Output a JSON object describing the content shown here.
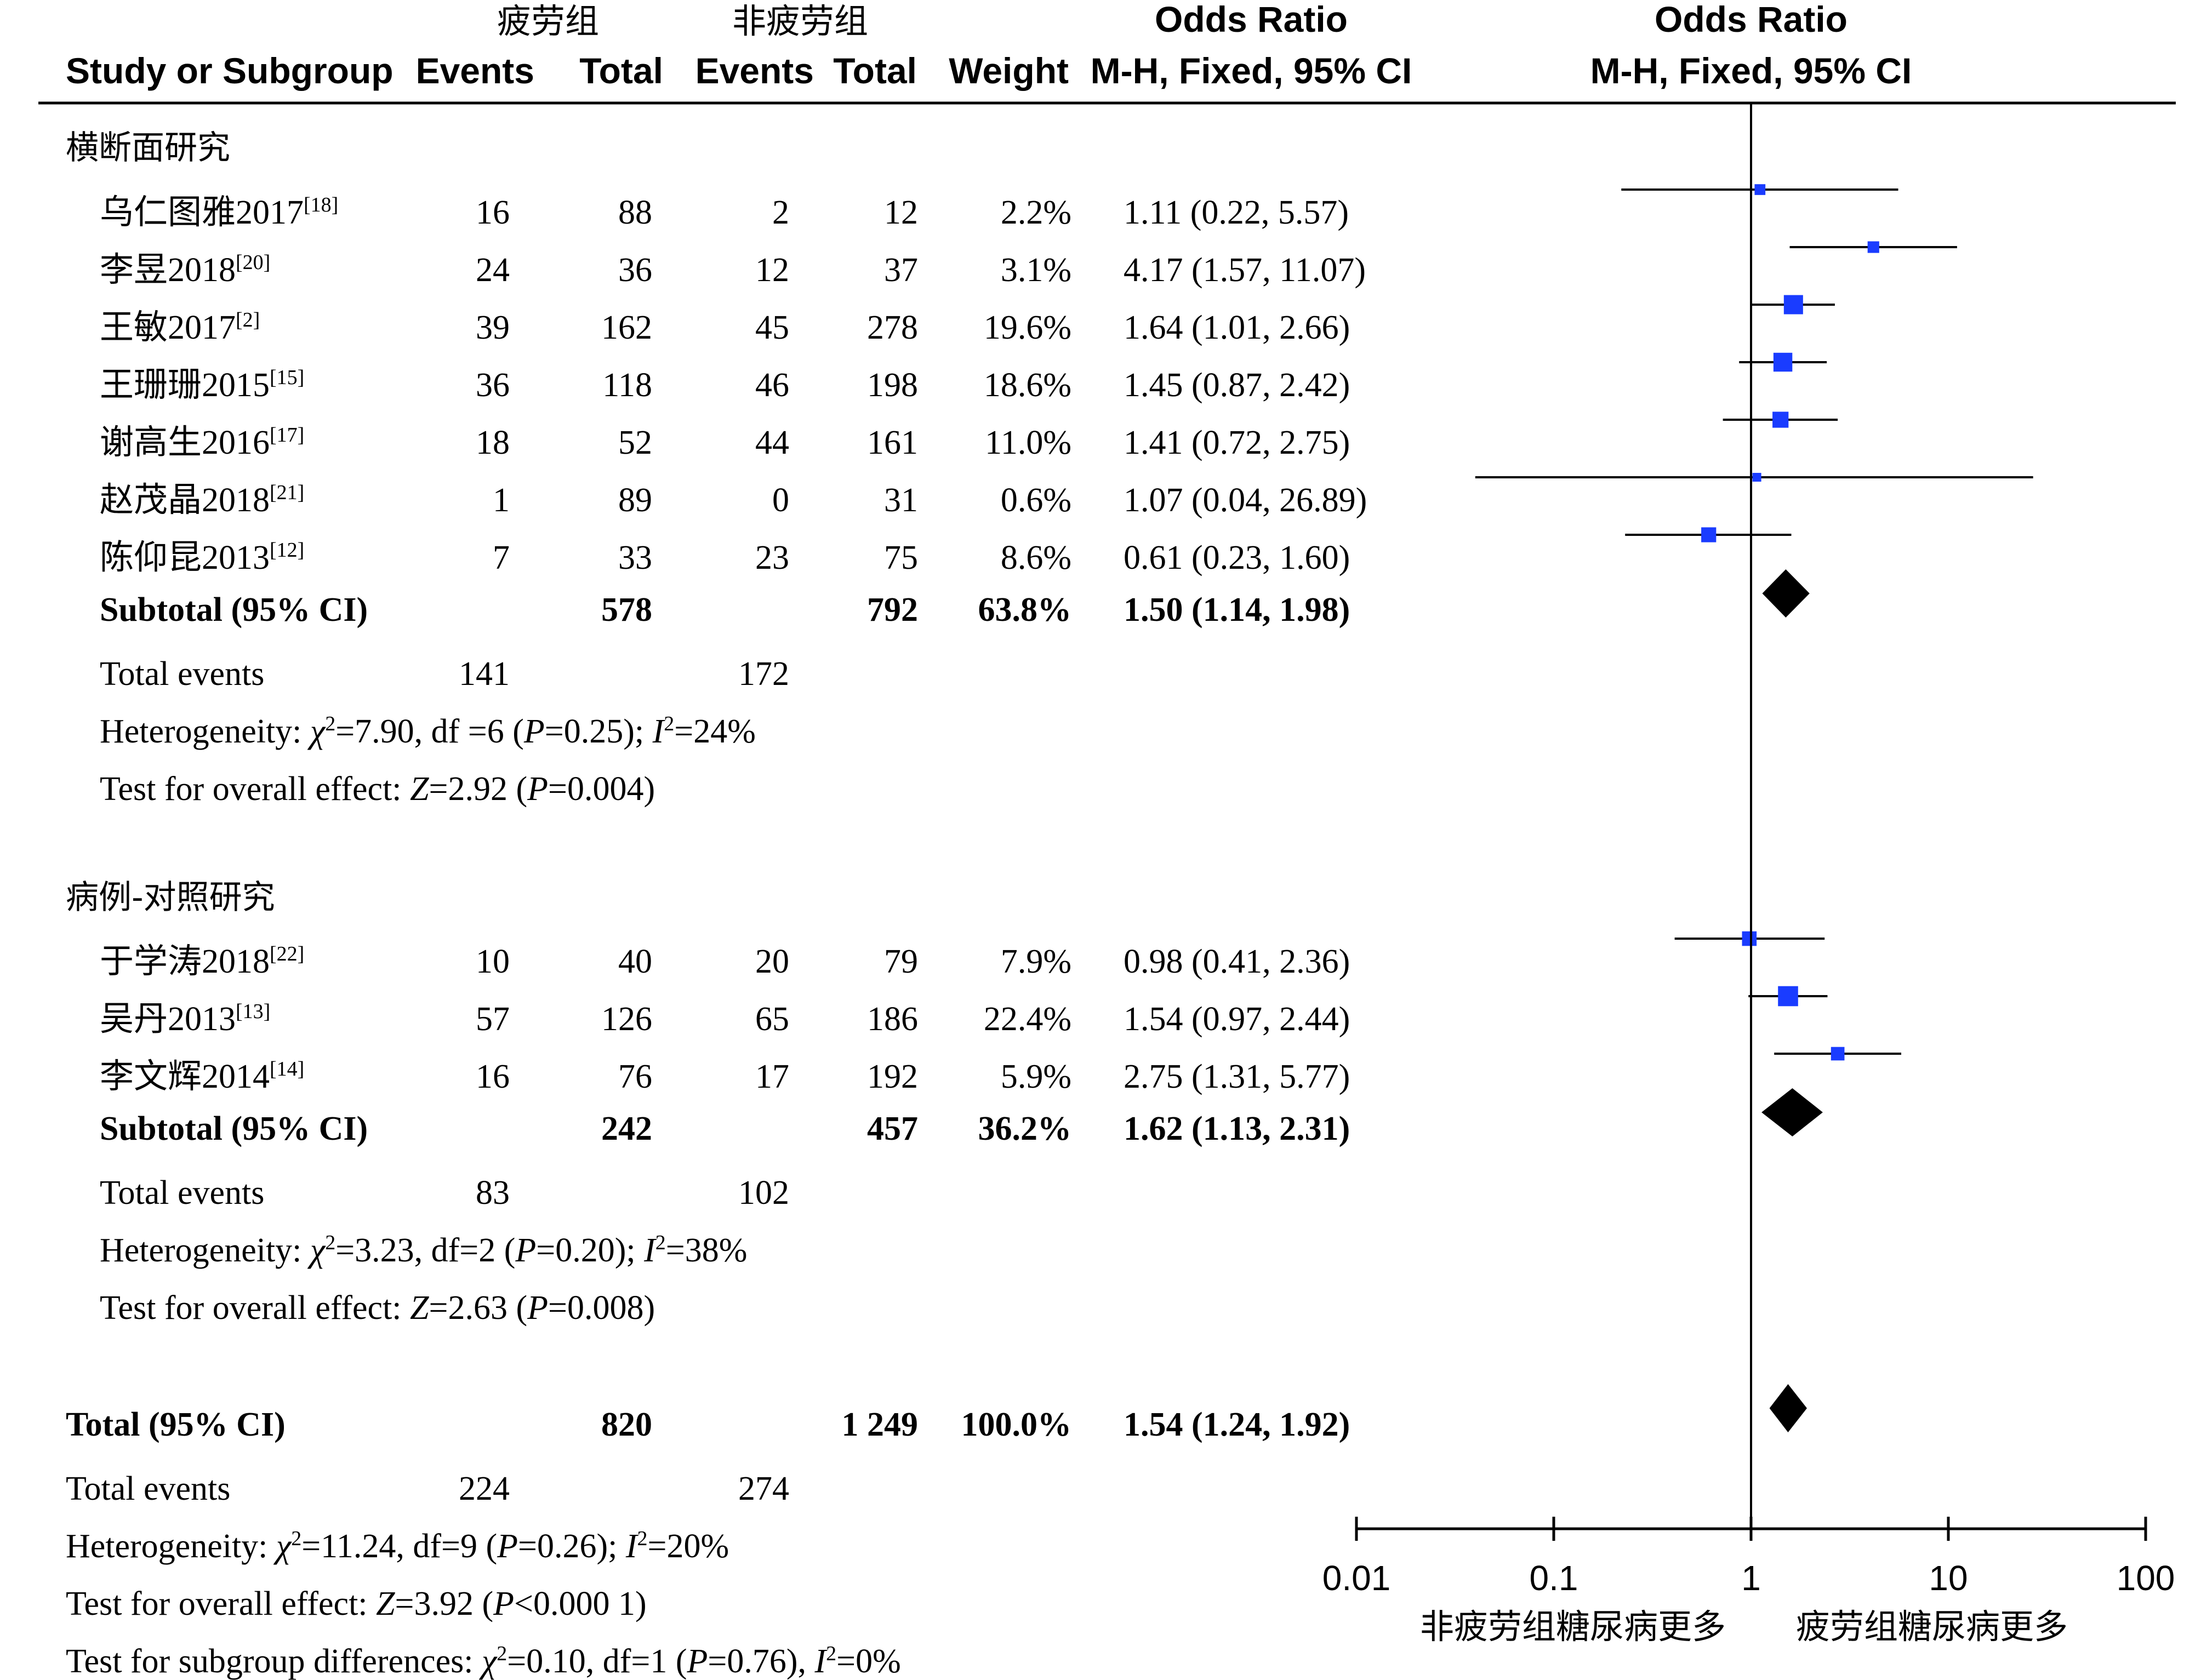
{
  "header": {
    "group1": "疲劳组",
    "group2": "非疲劳组",
    "col_study": "Study or Subgroup",
    "col_events1": "Events",
    "col_total1": "Total",
    "col_events2": "Events",
    "col_total2": "Total",
    "col_weight": "Weight",
    "col_or_title": "Odds Ratio",
    "col_or_method": "M-H, Fixed, 95% CI",
    "plot_title": "Odds Ratio",
    "plot_method": "M-H, Fixed, 95% CI"
  },
  "chart_data": {
    "type": "forest",
    "scale": "log",
    "xlim": [
      0.01,
      100
    ],
    "x_ticks": [
      "0.01",
      "0.1",
      "1",
      "10",
      "100"
    ],
    "favours_left": "非疲劳组糖尿病更多",
    "favours_right": "疲劳组糖尿病更多",
    "subgroups": [
      {
        "name": "横断面研究",
        "studies": [
          {
            "study": "乌仁图雅2017",
            "ref": "[18]",
            "e1": "16",
            "n1": "88",
            "e2": "2",
            "n2": "12",
            "weight": "2.2%",
            "or_text": "1.11 (0.22, 5.57)",
            "or": 1.11,
            "lo": 0.22,
            "hi": 5.57,
            "w": 2.2
          },
          {
            "study": "李昱2018",
            "ref": "[20]",
            "e1": "24",
            "n1": "36",
            "e2": "12",
            "n2": "37",
            "weight": "3.1%",
            "or_text": "4.17 (1.57, 11.07)",
            "or": 4.17,
            "lo": 1.57,
            "hi": 11.07,
            "w": 3.1
          },
          {
            "study": "王敏2017",
            "ref": "[2]",
            "e1": "39",
            "n1": "162",
            "e2": "45",
            "n2": "278",
            "weight": "19.6%",
            "or_text": "1.64 (1.01, 2.66)",
            "or": 1.64,
            "lo": 1.01,
            "hi": 2.66,
            "w": 19.6
          },
          {
            "study": "王珊珊2015",
            "ref": "[15]",
            "e1": "36",
            "n1": "118",
            "e2": "46",
            "n2": "198",
            "weight": "18.6%",
            "or_text": "1.45 (0.87, 2.42)",
            "or": 1.45,
            "lo": 0.87,
            "hi": 2.42,
            "w": 18.6
          },
          {
            "study": "谢高生2016",
            "ref": "[17]",
            "e1": "18",
            "n1": "52",
            "e2": "44",
            "n2": "161",
            "weight": "11.0%",
            "or_text": "1.41 (0.72, 2.75)",
            "or": 1.41,
            "lo": 0.72,
            "hi": 2.75,
            "w": 11.0
          },
          {
            "study": "赵茂晶2018",
            "ref": "[21]",
            "e1": "1",
            "n1": "89",
            "e2": "0",
            "n2": "31",
            "weight": "0.6%",
            "or_text": "1.07 (0.04, 26.89)",
            "or": 1.07,
            "lo": 0.04,
            "hi": 26.89,
            "w": 0.6
          },
          {
            "study": "陈仰昆2013",
            "ref": "[12]",
            "e1": "7",
            "n1": "33",
            "e2": "23",
            "n2": "75",
            "weight": "8.6%",
            "or_text": "0.61 (0.23, 1.60)",
            "or": 0.61,
            "lo": 0.23,
            "hi": 1.6,
            "w": 8.6
          }
        ],
        "subtotal": {
          "label": "Subtotal (95% CI)",
          "n1": "578",
          "n2": "792",
          "weight": "63.8%",
          "or_text": "1.50 (1.14, 1.98)",
          "or": 1.5,
          "lo": 1.14,
          "hi": 1.98
        },
        "total_events": {
          "label": "Total events",
          "e1": "141",
          "e2": "172"
        },
        "heterogeneity": {
          "prefix": "Heterogeneity: ",
          "chi_label": "χ",
          "chi": "=7.90, df =6 (",
          "p_label": "P",
          "p": "=0.25); ",
          "i_label": "I",
          "i": "=24%"
        },
        "overall": {
          "prefix": "Test for overall effect: ",
          "z_label": "Z",
          "z": "=2.92 (",
          "p_label": "P",
          "p": "=0.004)"
        }
      },
      {
        "name": "病例-对照研究",
        "studies": [
          {
            "study": "于学涛2018",
            "ref": "[22]",
            "e1": "10",
            "n1": "40",
            "e2": "20",
            "n2": "79",
            "weight": "7.9%",
            "or_text": "0.98 (0.41, 2.36)",
            "or": 0.98,
            "lo": 0.41,
            "hi": 2.36,
            "w": 7.9
          },
          {
            "study": "吴丹2013",
            "ref": "[13]",
            "e1": "57",
            "n1": "126",
            "e2": "65",
            "n2": "186",
            "weight": "22.4%",
            "or_text": "1.54 (0.97, 2.44)",
            "or": 1.54,
            "lo": 0.97,
            "hi": 2.44,
            "w": 22.4
          },
          {
            "study": "李文辉2014",
            "ref": "[14]",
            "e1": "16",
            "n1": "76",
            "e2": "17",
            "n2": "192",
            "weight": "5.9%",
            "or_text": "2.75 (1.31, 5.77)",
            "or": 2.75,
            "lo": 1.31,
            "hi": 5.77,
            "w": 5.9
          }
        ],
        "subtotal": {
          "label": "Subtotal (95% CI)",
          "n1": "242",
          "n2": "457",
          "weight": "36.2%",
          "or_text": "1.62 (1.13, 2.31)",
          "or": 1.62,
          "lo": 1.13,
          "hi": 2.31
        },
        "total_events": {
          "label": "Total events",
          "e1": "83",
          "e2": "102"
        },
        "heterogeneity": {
          "prefix": "Heterogeneity: ",
          "chi_label": "χ",
          "chi": "=3.23, df=2 (",
          "p_label": "P",
          "p": "=0.20); ",
          "i_label": "I",
          "i": "=38%"
        },
        "overall": {
          "prefix": "Test for overall effect: ",
          "z_label": "Z",
          "z": "=2.63 (",
          "p_label": "P",
          "p": "=0.008)"
        }
      }
    ],
    "total": {
      "label": "Total (95% CI)",
      "n1": "820",
      "n2": "1 249",
      "weight": "100.0%",
      "or_text": "1.54 (1.24, 1.92)",
      "or": 1.54,
      "lo": 1.24,
      "hi": 1.92
    },
    "total_events": {
      "label": "Total events",
      "e1": "224",
      "e2": "274"
    },
    "heterogeneity": {
      "prefix": "Heterogeneity: ",
      "chi_label": "χ",
      "chi": "=11.24, df=9 (",
      "p_label": "P",
      "p": "=0.26); ",
      "i_label": "I",
      "i": "=20%"
    },
    "overall": {
      "prefix": "Test for overall effect: ",
      "z_label": "Z",
      "z": "=3.92 (",
      "p_label": "P",
      "p": "<0.000 1)"
    },
    "subgroup_diff": {
      "prefix": "Test for subgroup differences: ",
      "chi_label": "χ",
      "chi": "=0.10, df=1 (",
      "p_label": "P",
      "p": "=0.76), ",
      "i_label": "I",
      "i": "=0%"
    },
    "colors": {
      "study_marker": "#1a3cff",
      "pooled_marker": "#000000",
      "lines": "#000000"
    }
  }
}
